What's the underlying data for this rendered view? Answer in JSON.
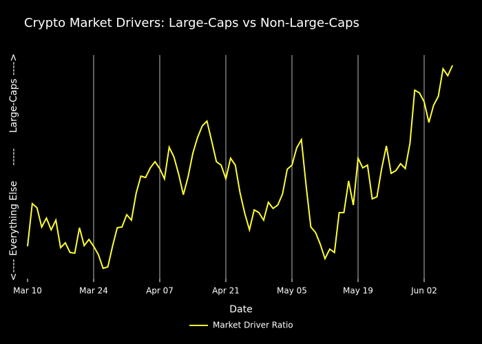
{
  "chart_data": {
    "type": "line",
    "title": "Crypto Market Drivers: Large-Caps vs Non-Large-Caps",
    "xlabel": "Date",
    "ylabel": "<---- Everything Else     -----     Large-Caps ---->",
    "x": [
      "Mar 10",
      "Mar 11",
      "Mar 12",
      "Mar 13",
      "Mar 14",
      "Mar 15",
      "Mar 16",
      "Mar 17",
      "Mar 18",
      "Mar 19",
      "Mar 20",
      "Mar 21",
      "Mar 22",
      "Mar 23",
      "Mar 24",
      "Mar 25",
      "Mar 26",
      "Mar 27",
      "Mar 28",
      "Mar 29",
      "Mar 30",
      "Mar 31",
      "Apr 01",
      "Apr 02",
      "Apr 03",
      "Apr 04",
      "Apr 05",
      "Apr 06",
      "Apr 07",
      "Apr 08",
      "Apr 09",
      "Apr 10",
      "Apr 11",
      "Apr 12",
      "Apr 13",
      "Apr 14",
      "Apr 15",
      "Apr 16",
      "Apr 17",
      "Apr 18",
      "Apr 19",
      "Apr 20",
      "Apr 21",
      "Apr 22",
      "Apr 23",
      "Apr 24",
      "Apr 25",
      "Apr 26",
      "Apr 27",
      "Apr 28",
      "Apr 29",
      "Apr 30",
      "May 01",
      "May 02",
      "May 03",
      "May 04",
      "May 05",
      "May 06",
      "May 07",
      "May 08",
      "May 09",
      "May 10",
      "May 11",
      "May 12",
      "May 13",
      "May 14",
      "May 15",
      "May 16",
      "May 17",
      "May 18",
      "May 19",
      "May 20",
      "May 21",
      "May 22",
      "May 23",
      "May 24",
      "May 25",
      "May 26",
      "May 27",
      "May 28",
      "May 29",
      "May 30",
      "May 31",
      "Jun 01",
      "Jun 02",
      "Jun 03",
      "Jun 04",
      "Jun 05",
      "Jun 06",
      "Jun 07",
      "Jun 08"
    ],
    "series": [
      {
        "name": "Market Driver Ratio",
        "color": "#ffff33",
        "values": [
          47,
          109,
          103,
          75,
          88,
          71,
          85,
          45,
          52,
          38,
          37,
          74,
          48,
          57,
          47,
          35,
          15,
          17,
          47,
          74,
          75,
          93,
          85,
          124,
          149,
          147,
          161,
          170,
          160,
          145,
          191,
          177,
          152,
          122,
          148,
          182,
          205,
          222,
          229,
          200,
          170,
          165,
          145,
          175,
          165,
          125,
          95,
          71,
          100,
          96,
          85,
          111,
          102,
          107,
          123,
          159,
          165,
          190,
          202,
          135,
          75,
          67,
          50,
          29,
          43,
          38,
          96,
          96,
          142,
          107,
          175,
          161,
          165,
          116,
          119,
          160,
          193,
          153,
          157,
          167,
          160,
          197,
          274,
          270,
          257,
          227,
          252,
          265,
          305,
          295,
          310
        ]
      }
    ],
    "ylim": [
      0,
      325
    ],
    "xticks": [
      "Mar 10",
      "Mar 24",
      "Apr 07",
      "Apr 21",
      "May 05",
      "May 19",
      "Jun 02"
    ],
    "grid": true,
    "legend": "bottom"
  }
}
